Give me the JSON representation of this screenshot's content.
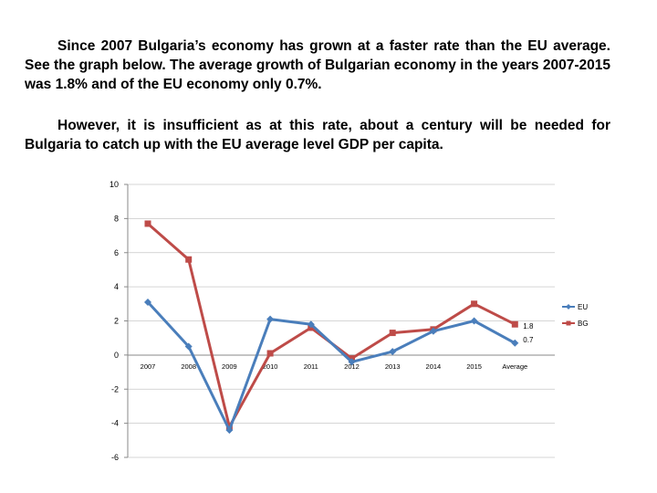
{
  "text": {
    "paragraph1": "Since 2007 Bulgaria’s economy has grown at a faster rate than the EU average. See the graph below. The average growth of Bulgarian economy in the years 2007-2015 was 1.8% and of the EU economy only 0.7%.",
    "paragraph2": "However, it is insufficient as at this rate, about a century will be needed for Bulgaria to catch up with the EU average level GDP per capita."
  },
  "chart_data": {
    "type": "line",
    "title": "",
    "xlabel": "",
    "ylabel": "",
    "categories": [
      "2007",
      "2008",
      "2009",
      "2010",
      "2011",
      "2012",
      "2013",
      "2014",
      "2015",
      "Average"
    ],
    "yticks": [
      "10",
      "8",
      "6",
      "4",
      "2",
      "0",
      "-2",
      "-4",
      "-6"
    ],
    "ylim": [
      -6,
      10
    ],
    "grid": "horizontal",
    "legend_position": "right",
    "series": [
      {
        "name": "EU",
        "color": "#4a7ebb",
        "marker": "diamond",
        "values": [
          3.1,
          0.5,
          -4.4,
          2.1,
          1.8,
          -0.4,
          0.2,
          1.4,
          2.0,
          0.7
        ]
      },
      {
        "name": "BG",
        "color": "#be4b48",
        "marker": "square",
        "values": [
          7.7,
          5.6,
          -4.2,
          0.1,
          1.6,
          -0.2,
          1.3,
          1.5,
          3.0,
          1.8
        ]
      }
    ],
    "data_labels": [
      {
        "series": "BG",
        "category": "Average",
        "text": "1.8"
      },
      {
        "series": "EU",
        "category": "Average",
        "text": "0.7"
      }
    ]
  }
}
